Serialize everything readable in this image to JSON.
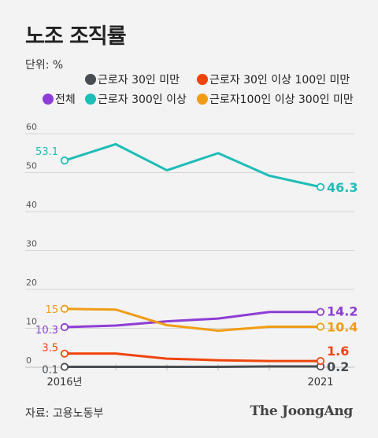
{
  "title": "노조 조직률",
  "unit_label": "단위: %",
  "source": "자료: 고용노동부",
  "brand": "The JoongAng",
  "chart_data": {
    "type": "line",
    "title": "노조 조직률",
    "x": [
      2016,
      2017,
      2018,
      2019,
      2020,
      2021
    ],
    "x_tick_labels": [
      "2016년",
      "2021"
    ],
    "y_ticks": [
      "0",
      "10",
      "20",
      "30",
      "40",
      "50",
      "60"
    ],
    "ylim": [
      0,
      60
    ],
    "grid": true,
    "legend_position": "top",
    "series": [
      {
        "name": "근로자 30인 미만",
        "color": "#474d52",
        "values": [
          0.1,
          0.1,
          0.1,
          0.1,
          0.2,
          0.2
        ],
        "start_label": "0.1",
        "end_label": "0.2"
      },
      {
        "name": "근로자 30인 이상 100인 미만",
        "color": "#f0440c",
        "values": [
          3.5,
          3.5,
          2.2,
          1.8,
          1.6,
          1.6
        ],
        "start_label": "3.5",
        "end_label": "1.6"
      },
      {
        "name": "전체",
        "color": "#8e3dd6",
        "values": [
          10.3,
          10.7,
          11.8,
          12.5,
          14.2,
          14.2
        ],
        "start_label": "10.3",
        "end_label": "14.2"
      },
      {
        "name": "근로자 300인 이상",
        "color": "#1ebdb7",
        "values": [
          53.1,
          57.3,
          50.6,
          55.0,
          49.2,
          46.3
        ],
        "start_label": "53.1",
        "end_label": "46.3"
      },
      {
        "name": "근로자100인 이상 300인 미만",
        "color": "#f19c14",
        "values": [
          15.0,
          14.8,
          10.8,
          9.4,
          10.4,
          10.4
        ],
        "start_label": "15",
        "end_label": "10.4"
      }
    ]
  }
}
